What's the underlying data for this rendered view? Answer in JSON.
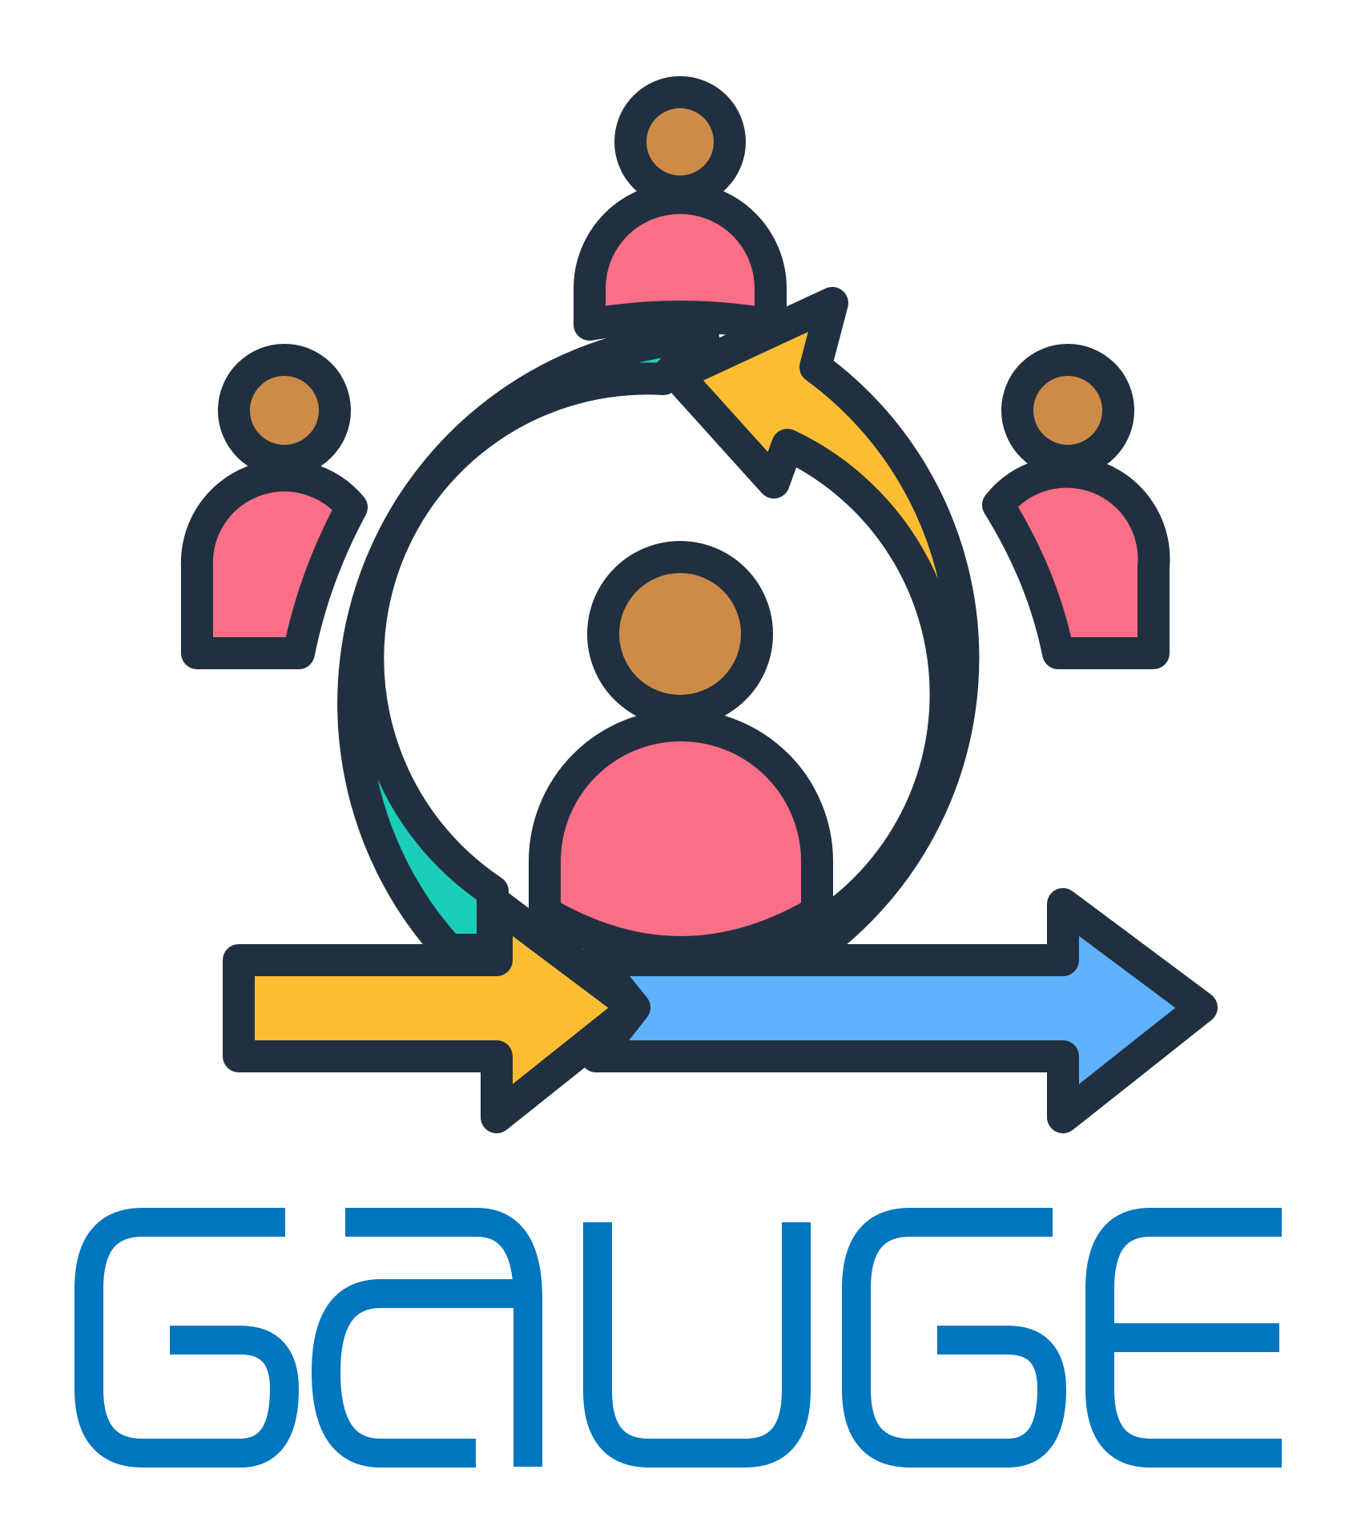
{
  "logo": {
    "wordmark": "GAUGE",
    "emblem": "people-cycle-arrows-icon"
  },
  "colors": {
    "outline": "#203040",
    "skin": "#CE8B47",
    "body": "#F96F86",
    "teal": "#1BCEBA",
    "yellow": "#FDBD32",
    "blue": "#5EB3FC",
    "wordmark": "#0076BE",
    "background": "#FFFFFF"
  }
}
